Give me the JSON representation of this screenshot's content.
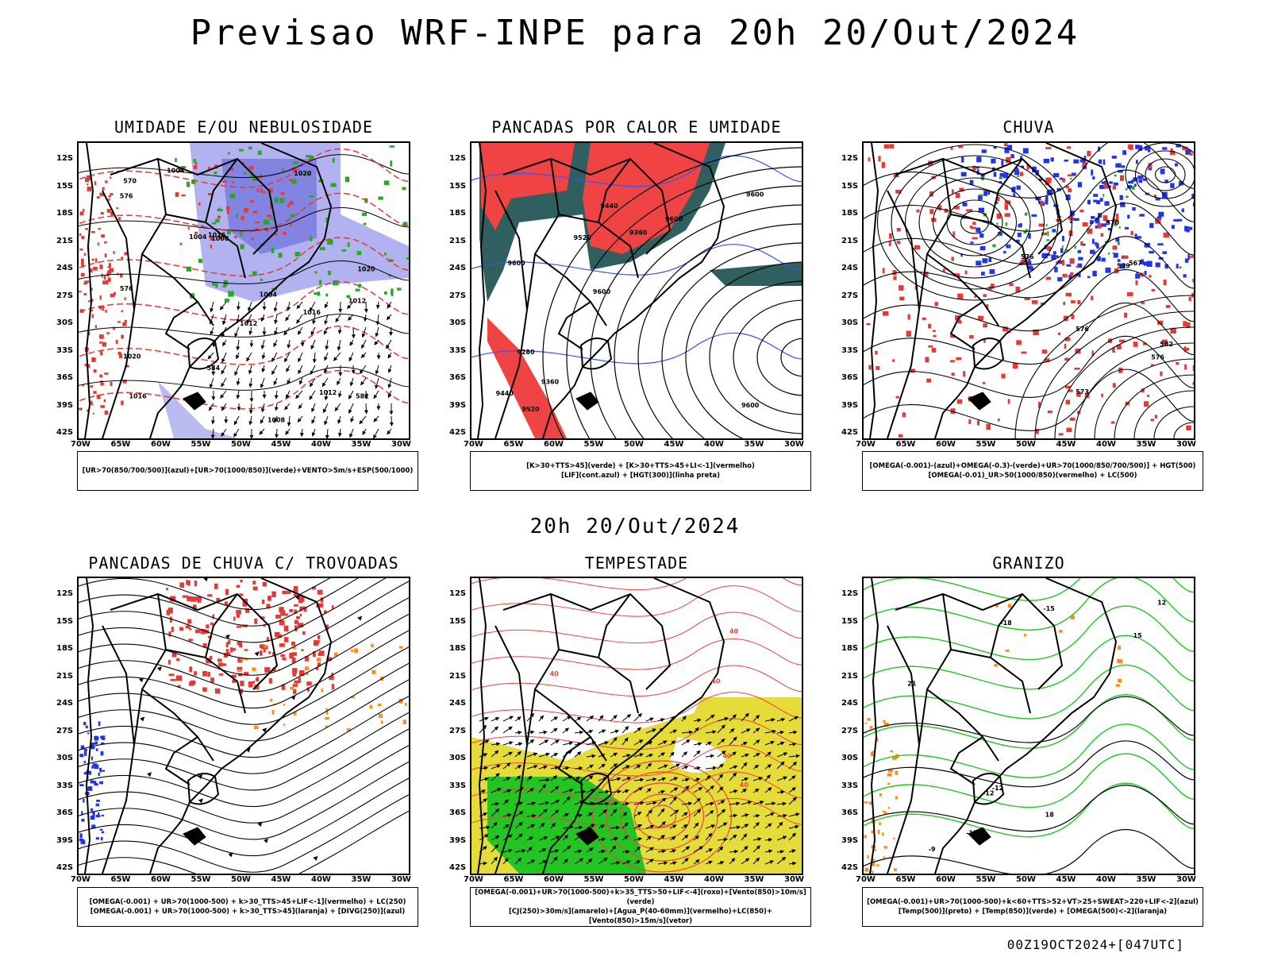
{
  "title": "Previsao WRF-INPE  para 20h 20/Out/2024",
  "mid_date": "20h 20/Out/2024",
  "footer": "00Z19OCT2024+[047UTC]",
  "axes": {
    "lat": [
      "12S",
      "15S",
      "18S",
      "21S",
      "24S",
      "27S",
      "30S",
      "33S",
      "36S",
      "39S",
      "42S"
    ],
    "lon": [
      "70W",
      "65W",
      "60W",
      "55W",
      "50W",
      "45W",
      "40W",
      "35W",
      "30W"
    ]
  },
  "panels": [
    {
      "title": "UMIDADE E/OU NEBULOSIDADE",
      "legend": [
        "[UR>70(850/700/500)](azul)+[UR>70(1000/850)](verde)+VENTO>5m/s+ESP(500/1000)"
      ],
      "labels": [
        "1016",
        "1012",
        "1016",
        "1004",
        "1008",
        "1012",
        "1020",
        "1020",
        "1004",
        "1008",
        "576",
        "576",
        "570",
        "582",
        "584",
        "1020",
        "1012",
        "1004",
        "1016"
      ]
    },
    {
      "title": "PANCADAS POR CALOR E UMIDADE",
      "legend": [
        "[K>30+TTS>45](verde) + [K>30+TTS>45+LI<-1](vermelho)",
        "[LIF](cont.azul) + [HGT(300)](linha preta)"
      ],
      "labels": [
        "9600",
        "9600",
        "9600",
        "9600",
        "9600",
        "9520",
        "9440",
        "9360",
        "9280",
        "9520",
        "9440",
        "9360"
      ]
    },
    {
      "title": "CHUVA",
      "legend": [
        "[OMEGA(-0.001)-(azul)+OMEGA(-0.3)-(verde)+UR>70(1000/850/700/500)] + HGT(500)",
        "[OMEGA(-0.01)_UR>50(1000/850)(vermelho) + LC(500)"
      ],
      "labels": [
        "576",
        "582",
        "579",
        "576",
        "573",
        "570",
        "567",
        "576"
      ]
    },
    {
      "title": "PANCADAS DE CHUVA C/ TROVOADAS",
      "legend": [
        "[OMEGA(-0.001) + UR>70(1000-500) + k>30_TTS>45+LIF<-1](vermelho) + LC(250)",
        "[OMEGA(-0.001) + UR>70(1000-500) + k>30_TTS>45](laranja) + [DIVG(250)](azul)"
      ],
      "labels": []
    },
    {
      "title": "TEMPESTADE",
      "legend": [
        "[OMEGA(-0.001)+UR>70(1000-500)+k>35_TTS>50+LIF<-4](roxo)+[Vento(850)>10m/s](verde)",
        "[CJ(250)>30m/s](amarelo)+[Agua_P(40-60mm)](vermelho)+LC(850)+[Vento(850)>15m/s](vetor)"
      ],
      "labels": [
        "40",
        "40",
        "40",
        "40",
        "40"
      ]
    },
    {
      "title": "GRANIZO",
      "legend": [
        "[OMEGA(-0.001)+UR>70(1000-500)+k<60+TTS>52+VT>25+SWEAT>220+LIF<-2](azul)",
        "[Temp(500)](preto) + [Temp(850)](verde) + [OMEGA(500)<-2](laranja)"
      ],
      "labels": [
        "-12",
        "-12",
        "-15",
        "-9",
        "-18",
        "-15",
        "12",
        "15",
        "18",
        "21"
      ]
    }
  ]
}
